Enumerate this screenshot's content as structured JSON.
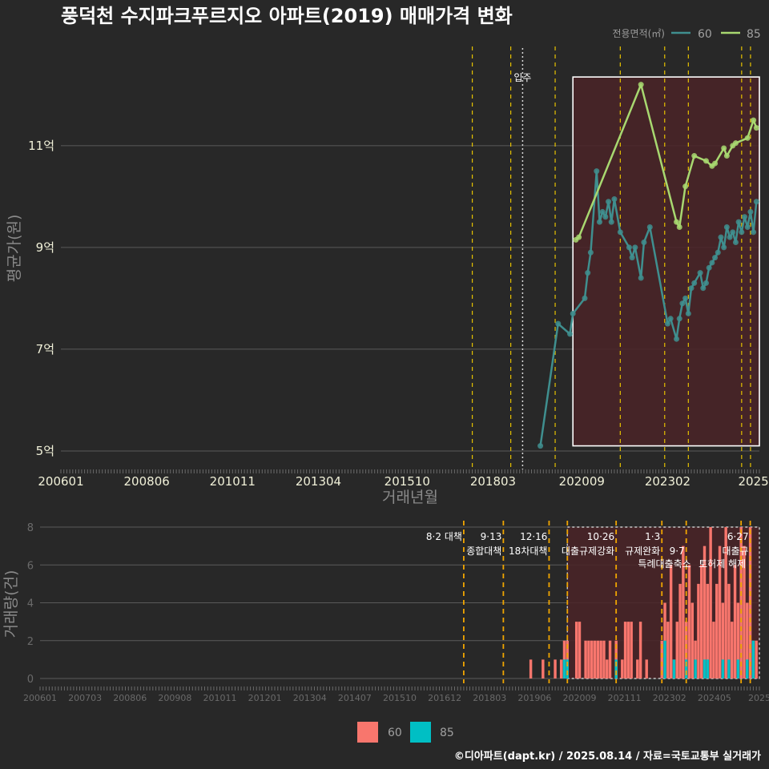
{
  "title": "풍덕천 수지파크푸르지오 아파트(2019) 매매가격 변화",
  "footer": "©디아파트(dapt.kr) / 2025.08.14 / 자료=국토교통부 실거래가",
  "colors": {
    "s60": "#3f8f8f",
    "s85": "#a8d870",
    "b60": "#f8766d",
    "b85": "#00bfc4",
    "box": "#4a2327",
    "event": "#e6c200"
  },
  "chart_data": [
    {
      "type": "line",
      "title": "풍덕천 수지파크푸르지오 아파트(2019) 매매가격 변화",
      "xlabel": "거래년월",
      "ylabel": "평균가(원)",
      "ylim_eok": [
        4.7,
        12.95
      ],
      "xlim": [
        "2006-01",
        "2025-09"
      ],
      "y_ticks": [
        {
          "v": 5,
          "label": "5억"
        },
        {
          "v": 7,
          "label": "7억"
        },
        {
          "v": 9,
          "label": "9억"
        },
        {
          "v": 11,
          "label": "11억"
        }
      ],
      "x_ticks": [
        {
          "t": "2006-01",
          "label": "200601"
        },
        {
          "t": "2008-06",
          "label": "200806"
        },
        {
          "t": "2010-11",
          "label": "201011"
        },
        {
          "t": "2013-04",
          "label": "201304"
        },
        {
          "t": "2015-10",
          "label": "201510"
        },
        {
          "t": "2018-03",
          "label": "201803"
        },
        {
          "t": "2020-09",
          "label": "202009"
        },
        {
          "t": "2023-02",
          "label": "202302"
        },
        {
          "t": "2025-07",
          "label": "2025"
        }
      ],
      "legend": {
        "title": "전용면적(㎡)",
        "entries": [
          "60",
          "85"
        ],
        "position": "top-right"
      },
      "events": [
        "2017-08",
        "2018-09",
        "2019-12",
        "2021-10",
        "2023-01",
        "2023-09",
        "2025-03",
        "2025-06"
      ],
      "marker": {
        "t": "2019-01",
        "label": "입주"
      },
      "highlight": {
        "from": "2020-06",
        "to": "2025-09",
        "y_from": 5.1,
        "y_to": 12.35
      },
      "series": [
        {
          "name": "60",
          "points": [
            [
              "2019-07",
              5.1
            ],
            [
              "2020-01",
              7.5
            ],
            [
              "2020-05",
              7.3
            ],
            [
              "2020-06",
              7.7
            ],
            [
              "2020-10",
              8.0
            ],
            [
              "2020-11",
              8.5
            ],
            [
              "2020-12",
              8.9
            ],
            [
              "2021-02",
              10.5
            ],
            [
              "2021-03",
              9.5
            ],
            [
              "2021-04",
              9.7
            ],
            [
              "2021-05",
              9.6
            ],
            [
              "2021-06",
              9.9
            ],
            [
              "2021-07",
              9.5
            ],
            [
              "2021-08",
              9.95
            ],
            [
              "2021-10",
              9.3
            ],
            [
              "2022-01",
              9.0
            ],
            [
              "2022-02",
              8.8
            ],
            [
              "2022-03",
              9.0
            ],
            [
              "2022-05",
              8.4
            ],
            [
              "2022-06",
              9.1
            ],
            [
              "2022-08",
              9.4
            ],
            [
              "2023-02",
              7.5
            ],
            [
              "2023-03",
              7.6
            ],
            [
              "2023-05",
              7.2
            ],
            [
              "2023-06",
              7.6
            ],
            [
              "2023-07",
              7.9
            ],
            [
              "2023-08",
              8.0
            ],
            [
              "2023-09",
              7.7
            ],
            [
              "2023-10",
              8.2
            ],
            [
              "2023-11",
              8.3
            ],
            [
              "2024-01",
              8.5
            ],
            [
              "2024-02",
              8.2
            ],
            [
              "2024-03",
              8.3
            ],
            [
              "2024-04",
              8.6
            ],
            [
              "2024-05",
              8.7
            ],
            [
              "2024-06",
              8.8
            ],
            [
              "2024-07",
              8.9
            ],
            [
              "2024-08",
              9.2
            ],
            [
              "2024-09",
              9.0
            ],
            [
              "2024-10",
              9.4
            ],
            [
              "2024-11",
              9.2
            ],
            [
              "2024-12",
              9.3
            ],
            [
              "2025-01",
              9.1
            ],
            [
              "2025-02",
              9.5
            ],
            [
              "2025-03",
              9.3
            ],
            [
              "2025-04",
              9.6
            ],
            [
              "2025-05",
              9.4
            ],
            [
              "2025-06",
              9.7
            ],
            [
              "2025-07",
              9.3
            ],
            [
              "2025-08",
              9.9
            ]
          ]
        },
        {
          "name": "85",
          "points": [
            [
              "2020-07",
              9.15
            ],
            [
              "2020-08",
              9.2
            ],
            [
              "2022-05",
              12.2
            ],
            [
              "2023-05",
              9.5
            ],
            [
              "2023-06",
              9.4
            ],
            [
              "2023-08",
              10.2
            ],
            [
              "2023-11",
              10.8
            ],
            [
              "2024-03",
              10.7
            ],
            [
              "2024-05",
              10.6
            ],
            [
              "2024-06",
              10.65
            ],
            [
              "2024-09",
              10.95
            ],
            [
              "2024-10",
              10.8
            ],
            [
              "2024-12",
              11.0
            ],
            [
              "2025-01",
              11.05
            ],
            [
              "2025-05",
              11.15
            ],
            [
              "2025-07",
              11.5
            ],
            [
              "2025-08",
              11.35
            ]
          ]
        }
      ]
    },
    {
      "type": "bar",
      "ylabel": "거래량(건)",
      "ylim": [
        0,
        8
      ],
      "y_ticks": [
        0,
        2,
        4,
        6,
        8
      ],
      "x_ticks": [
        "200601",
        "200703",
        "200806",
        "200908",
        "201011",
        "201201",
        "201304",
        "201407",
        "201510",
        "201612",
        "201803",
        "201906",
        "202009",
        "202111",
        "202302",
        "202405",
        "2025"
      ],
      "legend": {
        "entries": [
          "60",
          "85"
        ],
        "position": "bottom"
      },
      "stacked": true,
      "events": [
        {
          "t": "2017-08",
          "label": "8·2 대책"
        },
        {
          "t": "2018-09",
          "label": "9·13",
          "label2": "종합대책"
        },
        {
          "t": "2019-12",
          "label": "12·16",
          "label2": "18차대책"
        },
        {
          "t": "2020-06",
          "label": ""
        },
        {
          "t": "2021-10",
          "label": "10·26",
          "label2": "대출규제강화"
        },
        {
          "t": "2023-01",
          "label": "1·3",
          "label2": "규제완화"
        },
        {
          "t": "2023-09",
          "label": "",
          "label2": "9·7",
          "label3": "특례대출축소"
        },
        {
          "t": "2025-03",
          "label": "",
          "label3": "토허제 해제"
        },
        {
          "t": "2025-06",
          "label": "6·27",
          "label2": "대출규"
        }
      ],
      "highlight": {
        "from": "2020-06",
        "to": "2025-09"
      },
      "bars60": [
        [
          "2019-06",
          1
        ],
        [
          "2019-10",
          1
        ],
        [
          "2020-02",
          1
        ],
        [
          "2020-04",
          1
        ],
        [
          "2020-05",
          2
        ],
        [
          "2020-06",
          2
        ],
        [
          "2020-09",
          3
        ],
        [
          "2020-10",
          3
        ],
        [
          "2020-12",
          2
        ],
        [
          "2021-01",
          2
        ],
        [
          "2021-02",
          2
        ],
        [
          "2021-03",
          2
        ],
        [
          "2021-04",
          2
        ],
        [
          "2021-05",
          2
        ],
        [
          "2021-06",
          2
        ],
        [
          "2021-07",
          1
        ],
        [
          "2021-08",
          2
        ],
        [
          "2021-10",
          2
        ],
        [
          "2021-12",
          1
        ],
        [
          "2022-01",
          3
        ],
        [
          "2022-02",
          3
        ],
        [
          "2022-03",
          3
        ],
        [
          "2022-05",
          1
        ],
        [
          "2022-06",
          3
        ],
        [
          "2022-08",
          1
        ],
        [
          "2023-01",
          2
        ],
        [
          "2023-02",
          4
        ],
        [
          "2023-03",
          3
        ],
        [
          "2023-04",
          6
        ],
        [
          "2023-05",
          1
        ],
        [
          "2023-06",
          3
        ],
        [
          "2023-07",
          5
        ],
        [
          "2023-08",
          7
        ],
        [
          "2023-09",
          3
        ],
        [
          "2023-10",
          6
        ],
        [
          "2023-11",
          4
        ],
        [
          "2023-12",
          2
        ],
        [
          "2024-01",
          5
        ],
        [
          "2024-02",
          6
        ],
        [
          "2024-03",
          7
        ],
        [
          "2024-04",
          5
        ],
        [
          "2024-05",
          8
        ],
        [
          "2024-06",
          3
        ],
        [
          "2024-07",
          5
        ],
        [
          "2024-08",
          7
        ],
        [
          "2024-09",
          4
        ],
        [
          "2024-10",
          8
        ],
        [
          "2024-11",
          5
        ],
        [
          "2024-12",
          3
        ],
        [
          "2025-01",
          6
        ],
        [
          "2025-02",
          4
        ],
        [
          "2025-03",
          8
        ],
        [
          "2025-04",
          7
        ],
        [
          "2025-05",
          4
        ],
        [
          "2025-06",
          8
        ],
        [
          "2025-07",
          2
        ],
        [
          "2025-08",
          2
        ]
      ],
      "bars85": [
        [
          "2020-05",
          1
        ],
        [
          "2020-06",
          1
        ],
        [
          "2021-10",
          1
        ],
        [
          "2023-02",
          2
        ],
        [
          "2023-05",
          1
        ],
        [
          "2023-09",
          1
        ],
        [
          "2023-12",
          1
        ],
        [
          "2024-03",
          1
        ],
        [
          "2024-04",
          1
        ],
        [
          "2024-09",
          1
        ],
        [
          "2024-11",
          1
        ],
        [
          "2025-02",
          1
        ],
        [
          "2025-05",
          1
        ],
        [
          "2025-07",
          2
        ]
      ]
    }
  ]
}
